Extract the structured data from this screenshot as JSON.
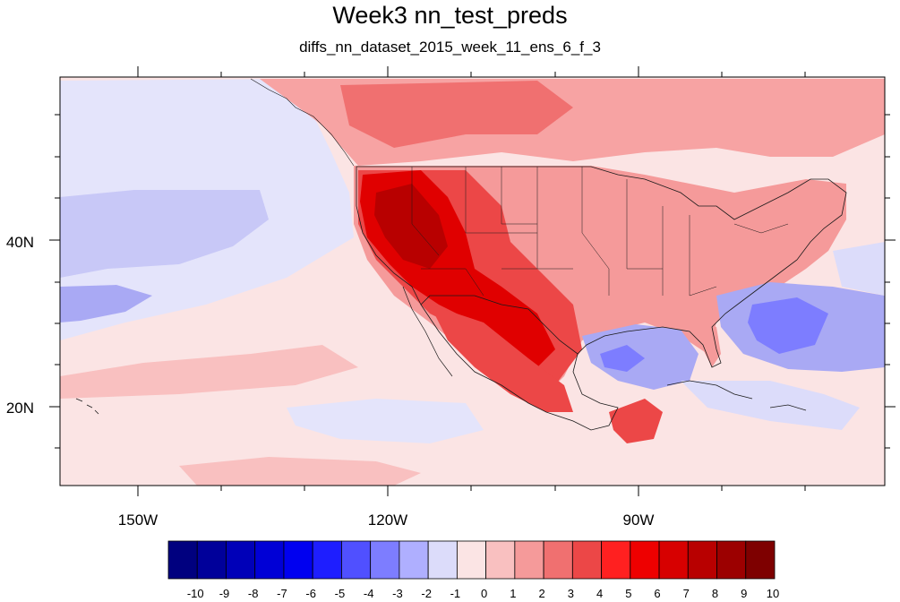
{
  "title": "Week3 nn_test_preds",
  "subtitle": "diffs_nn_dataset_2015_week_11_ens_6_f_3",
  "map": {
    "longitude_labels": [
      "150W",
      "120W",
      "90W"
    ],
    "latitude_labels": [
      "40N",
      "20N"
    ],
    "colors": {
      "ocean_neutral": "#fbe4e4",
      "land_warm": "#f7a3a3",
      "strong_warm": "#e00000",
      "cool_anomaly": "#a9a9f4",
      "boundaries": "#1a1a1a"
    }
  },
  "colorbar": {
    "labels": [
      "-10",
      "-9",
      "-8",
      "-7",
      "-6",
      "-5",
      "-4",
      "-3",
      "-2",
      "-1",
      "0",
      "1",
      "2",
      "3",
      "4",
      "5",
      "6",
      "7",
      "8",
      "9",
      "10"
    ],
    "colors": [
      "#00007f",
      "#00009a",
      "#0000b8",
      "#0000d6",
      "#0000f0",
      "#1e1eff",
      "#5050ff",
      "#7d7dff",
      "#afafff",
      "#dcdcfa",
      "#fbe4e4",
      "#f9c0c0",
      "#f59a9a",
      "#f07070",
      "#ec4747",
      "#ff2020",
      "#ee0000",
      "#d70000",
      "#b80000",
      "#9c0000",
      "#7e0000"
    ]
  }
}
